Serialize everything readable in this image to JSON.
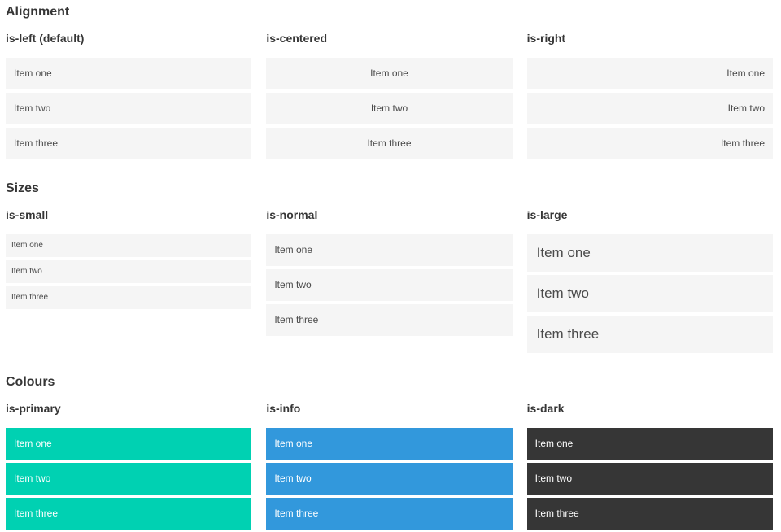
{
  "colors": {
    "primary": "#00d1b2",
    "info": "#3298dc",
    "dark": "#363636",
    "item_bg": "#f5f5f5",
    "item_text": "#4a4a4a",
    "heading_text": "#363636"
  },
  "sections": [
    {
      "title": "Alignment",
      "columns": [
        {
          "heading": "is-left (default)",
          "items": [
            "Item one",
            "Item two",
            "Item three"
          ]
        },
        {
          "heading": "is-centered",
          "items": [
            "Item one",
            "Item two",
            "Item three"
          ]
        },
        {
          "heading": "is-right",
          "items": [
            "Item one",
            "Item two",
            "Item three"
          ]
        }
      ]
    },
    {
      "title": "Sizes",
      "columns": [
        {
          "heading": "is-small",
          "items": [
            "Item one",
            "Item two",
            "Item three"
          ]
        },
        {
          "heading": "is-normal",
          "items": [
            "Item one",
            "Item two",
            "Item three"
          ]
        },
        {
          "heading": "is-large",
          "items": [
            "Item one",
            "Item two",
            "Item three"
          ]
        }
      ]
    },
    {
      "title": "Colours",
      "columns": [
        {
          "heading": "is-primary",
          "items": [
            "Item one",
            "Item two",
            "Item three"
          ]
        },
        {
          "heading": "is-info",
          "items": [
            "Item one",
            "Item two",
            "Item three"
          ]
        },
        {
          "heading": "is-dark",
          "items": [
            "Item one",
            "Item two",
            "Item three"
          ]
        }
      ]
    }
  ]
}
